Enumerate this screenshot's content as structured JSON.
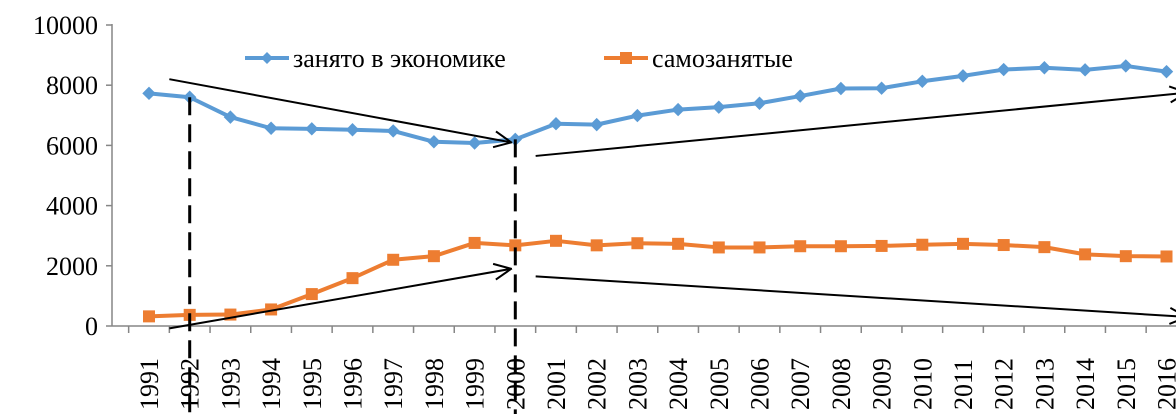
{
  "chart_data": {
    "type": "line",
    "title": "",
    "xlabel": "",
    "ylabel": "",
    "x": [
      "1991",
      "1992",
      "1993",
      "1994",
      "1995",
      "1996",
      "1997",
      "1998",
      "1999",
      "2000",
      "2001",
      "2002",
      "2003",
      "2004",
      "2005",
      "2006",
      "2007",
      "2008",
      "2009",
      "2010",
      "2011",
      "2012",
      "2013",
      "2014",
      "2015",
      "2016"
    ],
    "ylim": [
      0,
      10000
    ],
    "y_ticks": [
      "0",
      "2000",
      "4000",
      "6000",
      "8000",
      "10000"
    ],
    "grid": false,
    "legend_position": "top",
    "series": [
      {
        "name": "занято в экономике",
        "color": "#5B9BD5",
        "marker": "diamond",
        "values": [
          7730,
          7600,
          6940,
          6570,
          6550,
          6520,
          6480,
          6120,
          6080,
          6200,
          6720,
          6690,
          6990,
          7190,
          7270,
          7400,
          7640,
          7890,
          7900,
          8130,
          8310,
          8520,
          8580,
          8510,
          8640,
          8450
        ]
      },
      {
        "name": "самозанятые",
        "color": "#ED7D31",
        "marker": "square",
        "values": [
          320,
          370,
          380,
          550,
          1060,
          1590,
          2200,
          2320,
          2760,
          2680,
          2830,
          2680,
          2750,
          2730,
          2610,
          2610,
          2650,
          2650,
          2660,
          2700,
          2730,
          2690,
          2620,
          2380,
          2320,
          2310
        ]
      }
    ],
    "annotations": {
      "trend_arrows": [
        {
          "from_x": "1991.5",
          "from_y": 8200,
          "to_x": "1999.9",
          "to_y": 6100
        },
        {
          "from_x": "2000.5",
          "from_y": 5650,
          "to_x": "2016.5",
          "to_y": 7750
        },
        {
          "from_x": "1991.5",
          "from_y": -80,
          "to_x": "1999.9",
          "to_y": 1900
        },
        {
          "from_x": "2000.5",
          "from_y": 1650,
          "to_x": "2016.5",
          "to_y": 300
        }
      ],
      "dashed_lines_at": [
        "1992",
        "2000"
      ]
    }
  }
}
